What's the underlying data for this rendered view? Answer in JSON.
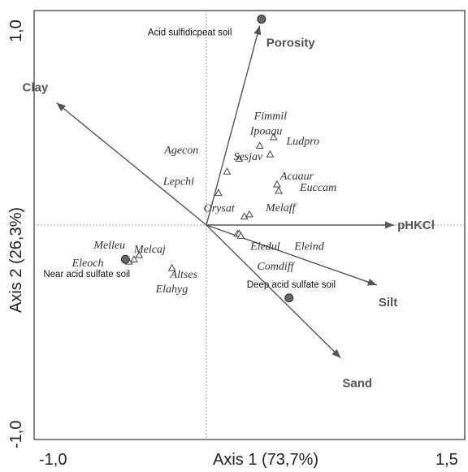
{
  "chart_data": {
    "type": "scatter",
    "title": "",
    "xlabel": "Axis 1 (73,7%)",
    "ylabel": "Axis 2 (26,3%)",
    "xlim": [
      -1.0,
      1.5
    ],
    "ylim": [
      -1.0,
      1.0
    ],
    "x_ticks": [
      "-1,0",
      "1,5"
    ],
    "y_ticks": [
      "1,0",
      "-1,0"
    ],
    "grid": false,
    "arrow_color": "#555555",
    "site_color": "#666666",
    "environmental_vectors": [
      {
        "name": "Porosity",
        "x": 0.31,
        "y": 0.93
      },
      {
        "name": "Clay",
        "x": -0.87,
        "y": 0.57
      },
      {
        "name": "pHKCl",
        "x": 1.09,
        "y": 0.0
      },
      {
        "name": "Silt",
        "x": 0.99,
        "y": -0.28
      },
      {
        "name": "Sand",
        "x": 0.78,
        "y": -0.62
      }
    ],
    "sites": [
      {
        "name": "Acid sulfidicpeat soil",
        "x": 0.32,
        "y": 0.96
      },
      {
        "name": "Near acid sulfate soil",
        "x": -0.47,
        "y": -0.16
      },
      {
        "name": "Deep acid sulfate soil",
        "x": 0.48,
        "y": -0.34
      }
    ],
    "species": [
      {
        "name": "Fimmil",
        "x": 0.39,
        "y": 0.41
      },
      {
        "name": "Ipoaqu",
        "x": 0.31,
        "y": 0.37
      },
      {
        "name": "Ludpro",
        "x": 0.37,
        "y": 0.33
      },
      {
        "name": "Agecon",
        "x": 0.19,
        "y": 0.31
      },
      {
        "name": "Sesjav",
        "x": 0.12,
        "y": 0.25
      },
      {
        "name": "Acaaur",
        "x": 0.41,
        "y": 0.19
      },
      {
        "name": "Lepchi",
        "x": 0.07,
        "y": 0.15
      },
      {
        "name": "Euccam",
        "x": 0.42,
        "y": 0.16
      },
      {
        "name": "Orysat",
        "x": 0.22,
        "y": 0.04
      },
      {
        "name": "Melaff",
        "x": 0.25,
        "y": 0.05
      },
      {
        "name": "Melleu",
        "x": -0.39,
        "y": -0.14
      },
      {
        "name": "Melcaj",
        "x": -0.42,
        "y": -0.16
      },
      {
        "name": "Eleoch",
        "x": -0.45,
        "y": -0.17
      },
      {
        "name": "Eledul",
        "x": 0.18,
        "y": -0.04
      },
      {
        "name": "Eleind",
        "x": 0.19,
        "y": -0.04
      },
      {
        "name": "Altses",
        "x": -0.2,
        "y": -0.2
      },
      {
        "name": "Elahyg",
        "x": -0.2,
        "y": -0.2
      },
      {
        "name": "Comdiff",
        "x": 0.2,
        "y": -0.05
      }
    ]
  }
}
